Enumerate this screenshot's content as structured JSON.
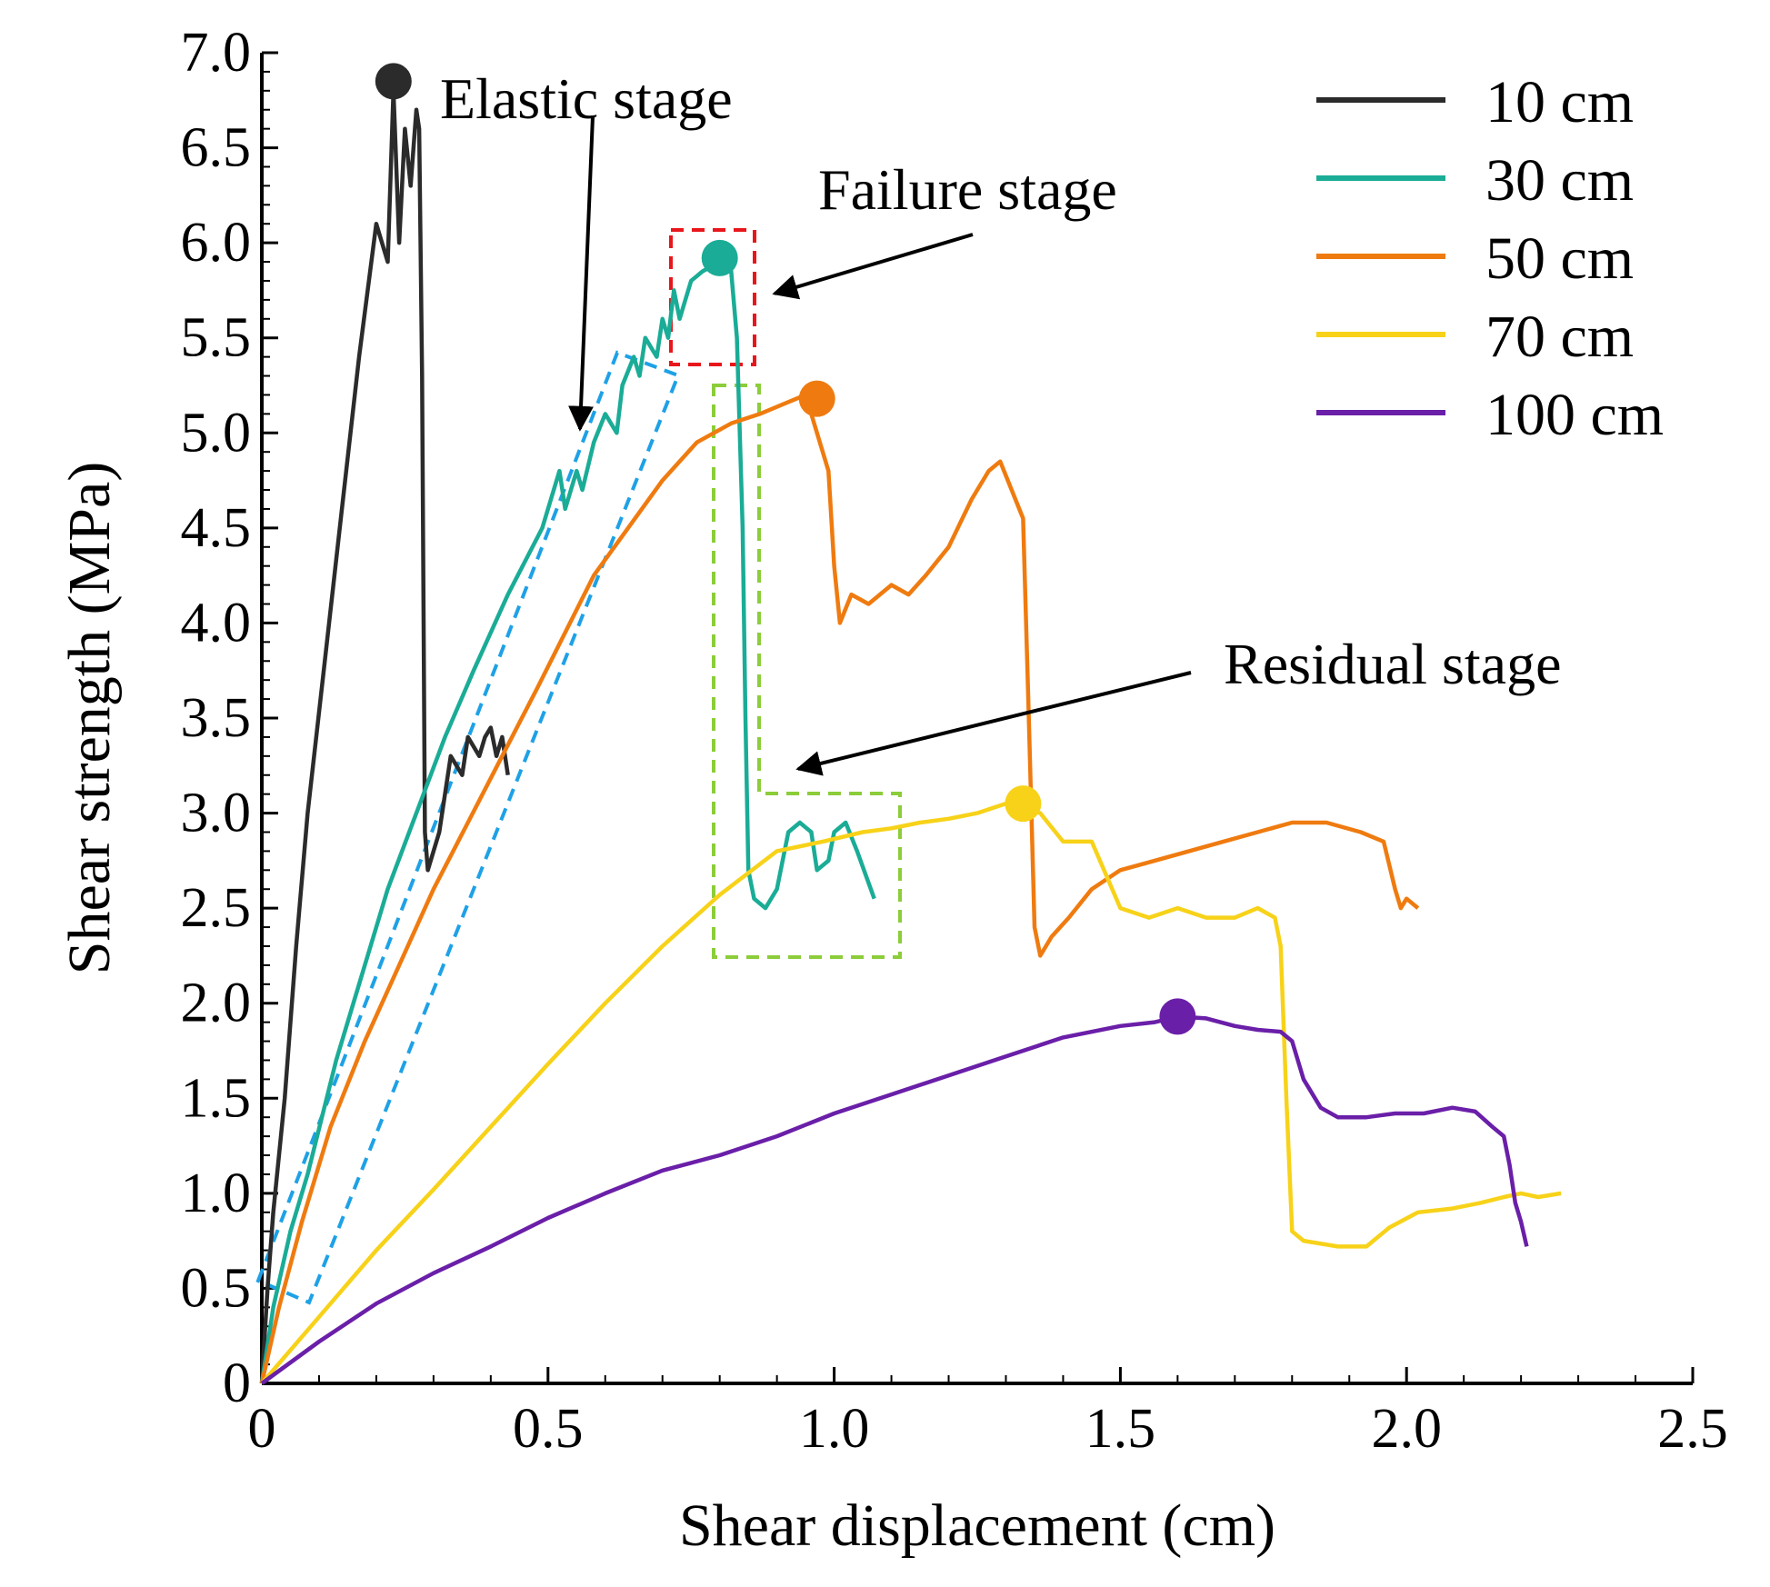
{
  "chart_data": {
    "type": "line",
    "title": "",
    "xlabel": "Shear displacement (cm)",
    "ylabel": "Shear strength (MPa)",
    "xlim": [
      0,
      2.5
    ],
    "ylim": [
      0,
      7.0
    ],
    "x_ticks": [
      0,
      0.5,
      1.0,
      1.5,
      2.0,
      2.5
    ],
    "x_tick_labels": [
      "0",
      "0.5",
      "1.0",
      "1.5",
      "2.0",
      "2.5"
    ],
    "y_ticks": [
      0,
      0.5,
      1.0,
      1.5,
      2.0,
      2.5,
      3.0,
      3.5,
      4.0,
      4.5,
      5.0,
      5.5,
      6.0,
      6.5,
      7.0
    ],
    "y_tick_labels": [
      "0",
      "0.5",
      "1.0",
      "1.5",
      "2.0",
      "2.5",
      "3.0",
      "3.5",
      "4.0",
      "4.5",
      "5.0",
      "5.5",
      "6.0",
      "6.5",
      "7.0"
    ],
    "grid": false,
    "legend_position": "top-right",
    "series": [
      {
        "name": "10 cm",
        "color": "#2b2b2b",
        "peak": [
          0.23,
          6.85
        ],
        "points": [
          [
            0,
            0
          ],
          [
            0.01,
            0.5
          ],
          [
            0.02,
            0.9
          ],
          [
            0.04,
            1.5
          ],
          [
            0.06,
            2.3
          ],
          [
            0.08,
            3.0
          ],
          [
            0.11,
            3.8
          ],
          [
            0.14,
            4.6
          ],
          [
            0.17,
            5.4
          ],
          [
            0.2,
            6.1
          ],
          [
            0.22,
            5.9
          ],
          [
            0.23,
            6.8
          ],
          [
            0.24,
            6.0
          ],
          [
            0.25,
            6.6
          ],
          [
            0.26,
            6.3
          ],
          [
            0.27,
            6.7
          ],
          [
            0.275,
            6.6
          ],
          [
            0.28,
            5.3
          ],
          [
            0.285,
            2.9
          ],
          [
            0.29,
            2.7
          ],
          [
            0.31,
            2.9
          ],
          [
            0.33,
            3.3
          ],
          [
            0.35,
            3.2
          ],
          [
            0.36,
            3.4
          ],
          [
            0.38,
            3.3
          ],
          [
            0.39,
            3.4
          ],
          [
            0.4,
            3.45
          ],
          [
            0.41,
            3.3
          ],
          [
            0.42,
            3.4
          ],
          [
            0.43,
            3.2
          ]
        ]
      },
      {
        "name": "30 cm",
        "color": "#1aac96",
        "peak": [
          0.8,
          5.92
        ],
        "points": [
          [
            0,
            0
          ],
          [
            0.02,
            0.4
          ],
          [
            0.05,
            0.8
          ],
          [
            0.08,
            1.1
          ],
          [
            0.13,
            1.7
          ],
          [
            0.17,
            2.1
          ],
          [
            0.22,
            2.6
          ],
          [
            0.27,
            3.0
          ],
          [
            0.32,
            3.4
          ],
          [
            0.37,
            3.75
          ],
          [
            0.43,
            4.15
          ],
          [
            0.49,
            4.5
          ],
          [
            0.52,
            4.8
          ],
          [
            0.53,
            4.6
          ],
          [
            0.55,
            4.8
          ],
          [
            0.56,
            4.7
          ],
          [
            0.58,
            4.95
          ],
          [
            0.6,
            5.1
          ],
          [
            0.62,
            5.0
          ],
          [
            0.63,
            5.25
          ],
          [
            0.65,
            5.4
          ],
          [
            0.66,
            5.3
          ],
          [
            0.67,
            5.5
          ],
          [
            0.69,
            5.4
          ],
          [
            0.7,
            5.6
          ],
          [
            0.71,
            5.5
          ],
          [
            0.72,
            5.75
          ],
          [
            0.73,
            5.6
          ],
          [
            0.74,
            5.7
          ],
          [
            0.75,
            5.8
          ],
          [
            0.77,
            5.85
          ],
          [
            0.8,
            5.9
          ],
          [
            0.82,
            5.85
          ],
          [
            0.83,
            5.5
          ],
          [
            0.84,
            4.5
          ],
          [
            0.845,
            3.5
          ],
          [
            0.85,
            2.7
          ],
          [
            0.86,
            2.55
          ],
          [
            0.88,
            2.5
          ],
          [
            0.9,
            2.6
          ],
          [
            0.92,
            2.9
          ],
          [
            0.94,
            2.95
          ],
          [
            0.96,
            2.9
          ],
          [
            0.97,
            2.7
          ],
          [
            0.99,
            2.75
          ],
          [
            1.0,
            2.9
          ],
          [
            1.02,
            2.95
          ],
          [
            1.04,
            2.8
          ],
          [
            1.07,
            2.55
          ]
        ]
      },
      {
        "name": "50 cm",
        "color": "#ef7b10",
        "peak": [
          0.97,
          5.18
        ],
        "points": [
          [
            0,
            0
          ],
          [
            0.03,
            0.4
          ],
          [
            0.07,
            0.85
          ],
          [
            0.12,
            1.35
          ],
          [
            0.18,
            1.8
          ],
          [
            0.24,
            2.2
          ],
          [
            0.3,
            2.6
          ],
          [
            0.36,
            2.95
          ],
          [
            0.42,
            3.3
          ],
          [
            0.48,
            3.65
          ],
          [
            0.53,
            3.95
          ],
          [
            0.58,
            4.25
          ],
          [
            0.64,
            4.5
          ],
          [
            0.7,
            4.75
          ],
          [
            0.76,
            4.95
          ],
          [
            0.82,
            5.05
          ],
          [
            0.87,
            5.1
          ],
          [
            0.91,
            5.15
          ],
          [
            0.95,
            5.2
          ],
          [
            0.97,
            5.0
          ],
          [
            0.99,
            4.8
          ],
          [
            1.0,
            4.3
          ],
          [
            1.01,
            4.0
          ],
          [
            1.03,
            4.15
          ],
          [
            1.06,
            4.1
          ],
          [
            1.1,
            4.2
          ],
          [
            1.13,
            4.15
          ],
          [
            1.16,
            4.25
          ],
          [
            1.2,
            4.4
          ],
          [
            1.24,
            4.65
          ],
          [
            1.27,
            4.8
          ],
          [
            1.29,
            4.85
          ],
          [
            1.31,
            4.7
          ],
          [
            1.33,
            4.55
          ],
          [
            1.34,
            3.5
          ],
          [
            1.35,
            2.4
          ],
          [
            1.36,
            2.25
          ],
          [
            1.38,
            2.35
          ],
          [
            1.41,
            2.45
          ],
          [
            1.45,
            2.6
          ],
          [
            1.5,
            2.7
          ],
          [
            1.56,
            2.75
          ],
          [
            1.62,
            2.8
          ],
          [
            1.68,
            2.85
          ],
          [
            1.74,
            2.9
          ],
          [
            1.8,
            2.95
          ],
          [
            1.86,
            2.95
          ],
          [
            1.92,
            2.9
          ],
          [
            1.96,
            2.85
          ],
          [
            1.98,
            2.6
          ],
          [
            1.99,
            2.5
          ],
          [
            2.0,
            2.55
          ],
          [
            2.02,
            2.5
          ]
        ]
      },
      {
        "name": "70 cm",
        "color": "#f7d219",
        "peak": [
          1.33,
          3.05
        ],
        "points": [
          [
            0,
            0
          ],
          [
            0.1,
            0.35
          ],
          [
            0.2,
            0.7
          ],
          [
            0.3,
            1.02
          ],
          [
            0.4,
            1.35
          ],
          [
            0.5,
            1.68
          ],
          [
            0.6,
            2.0
          ],
          [
            0.7,
            2.3
          ],
          [
            0.8,
            2.57
          ],
          [
            0.9,
            2.8
          ],
          [
            0.98,
            2.85
          ],
          [
            1.05,
            2.9
          ],
          [
            1.1,
            2.92
          ],
          [
            1.15,
            2.95
          ],
          [
            1.2,
            2.97
          ],
          [
            1.25,
            3.0
          ],
          [
            1.3,
            3.05
          ],
          [
            1.36,
            3.0
          ],
          [
            1.4,
            2.85
          ],
          [
            1.45,
            2.85
          ],
          [
            1.5,
            2.5
          ],
          [
            1.55,
            2.45
          ],
          [
            1.6,
            2.5
          ],
          [
            1.65,
            2.45
          ],
          [
            1.7,
            2.45
          ],
          [
            1.74,
            2.5
          ],
          [
            1.77,
            2.45
          ],
          [
            1.78,
            2.3
          ],
          [
            1.79,
            1.5
          ],
          [
            1.8,
            0.8
          ],
          [
            1.82,
            0.75
          ],
          [
            1.88,
            0.72
          ],
          [
            1.93,
            0.72
          ],
          [
            1.97,
            0.82
          ],
          [
            2.02,
            0.9
          ],
          [
            2.08,
            0.92
          ],
          [
            2.13,
            0.95
          ],
          [
            2.17,
            0.98
          ],
          [
            2.2,
            1.0
          ],
          [
            2.23,
            0.98
          ],
          [
            2.27,
            1.0
          ]
        ]
      },
      {
        "name": "100 cm",
        "color": "#6a1fa8",
        "peak": [
          1.6,
          1.93
        ],
        "points": [
          [
            0,
            0
          ],
          [
            0.1,
            0.22
          ],
          [
            0.2,
            0.42
          ],
          [
            0.3,
            0.58
          ],
          [
            0.4,
            0.72
          ],
          [
            0.5,
            0.87
          ],
          [
            0.6,
            1.0
          ],
          [
            0.7,
            1.12
          ],
          [
            0.8,
            1.2
          ],
          [
            0.9,
            1.3
          ],
          [
            1.0,
            1.42
          ],
          [
            1.1,
            1.52
          ],
          [
            1.2,
            1.62
          ],
          [
            1.3,
            1.72
          ],
          [
            1.4,
            1.82
          ],
          [
            1.5,
            1.88
          ],
          [
            1.56,
            1.9
          ],
          [
            1.6,
            1.93
          ],
          [
            1.65,
            1.92
          ],
          [
            1.7,
            1.88
          ],
          [
            1.74,
            1.86
          ],
          [
            1.78,
            1.85
          ],
          [
            1.8,
            1.8
          ],
          [
            1.82,
            1.6
          ],
          [
            1.85,
            1.45
          ],
          [
            1.88,
            1.4
          ],
          [
            1.93,
            1.4
          ],
          [
            1.98,
            1.42
          ],
          [
            2.03,
            1.42
          ],
          [
            2.08,
            1.45
          ],
          [
            2.12,
            1.43
          ],
          [
            2.15,
            1.35
          ],
          [
            2.17,
            1.3
          ],
          [
            2.18,
            1.15
          ],
          [
            2.19,
            0.95
          ],
          [
            2.2,
            0.85
          ],
          [
            2.21,
            0.72
          ]
        ]
      }
    ],
    "annotations": {
      "elastic": "Elastic stage",
      "failure": "Failure stage",
      "residual": "Residual stage"
    }
  }
}
